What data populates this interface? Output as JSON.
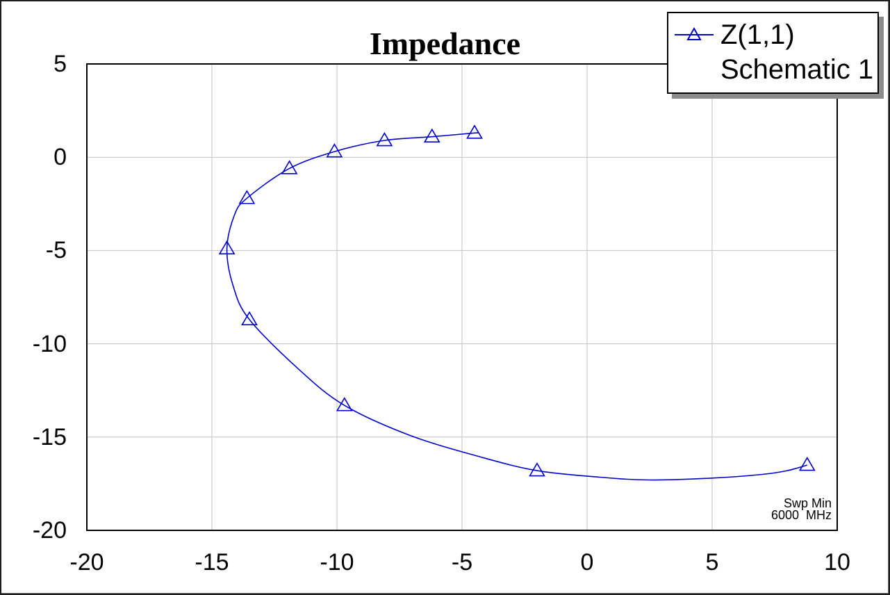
{
  "chart": {
    "legend": {
      "series_label": "Z(1,1)",
      "source_label": "Schematic 1"
    },
    "annotation": {
      "line1": "Swp Min",
      "line2": "6000  MHz"
    },
    "colors": {
      "trace": "#0000cc",
      "grid": "#c0c0c0",
      "axis_border": "#000000",
      "legend_shadow": "#8c8c8c"
    }
  },
  "chart_data": {
    "type": "line",
    "title": "Impedance",
    "xlabel": "",
    "ylabel": "",
    "xlim": [
      -20,
      10
    ],
    "ylim": [
      -20,
      5
    ],
    "xticks": [
      -20,
      -15,
      -10,
      -5,
      0,
      5,
      10
    ],
    "yticks": [
      5,
      0,
      -5,
      -10,
      -15,
      -20
    ],
    "grid": true,
    "legend_position": "top-right",
    "series": [
      {
        "name": "Z(1,1)",
        "source": "Schematic 1",
        "color": "#0000cc",
        "marker": "triangle-open",
        "points": [
          [
            -4.5,
            1.3
          ],
          [
            -6.2,
            1.1
          ],
          [
            -8.1,
            0.9
          ],
          [
            -10.1,
            0.3
          ],
          [
            -11.9,
            -0.6
          ],
          [
            -13.6,
            -2.2
          ],
          [
            -14.4,
            -4.9
          ],
          [
            -13.5,
            -8.7
          ],
          [
            -9.7,
            -13.3
          ],
          [
            -2.0,
            -16.8
          ],
          [
            8.8,
            -16.5
          ]
        ],
        "path": [
          [
            -4.4,
            1.3
          ],
          [
            -4.5,
            1.3
          ],
          [
            -6.2,
            1.1
          ],
          [
            -8.1,
            0.9
          ],
          [
            -10.1,
            0.3
          ],
          [
            -11.9,
            -0.6
          ],
          [
            -13.6,
            -2.2
          ],
          [
            -14.1,
            -3.1
          ],
          [
            -14.4,
            -4.9
          ],
          [
            -14.15,
            -6.9
          ],
          [
            -13.5,
            -8.7
          ],
          [
            -11.5,
            -11.4
          ],
          [
            -9.7,
            -13.3
          ],
          [
            -7.1,
            -14.9
          ],
          [
            -4.3,
            -16.05
          ],
          [
            -2.0,
            -16.8
          ],
          [
            0.5,
            -17.15
          ],
          [
            2.5,
            -17.3
          ],
          [
            5.0,
            -17.2
          ],
          [
            7.0,
            -17.0
          ],
          [
            8.0,
            -16.8
          ],
          [
            8.8,
            -16.5
          ]
        ],
        "sweep_min_label": "Swp Min 6000 MHz"
      }
    ]
  }
}
